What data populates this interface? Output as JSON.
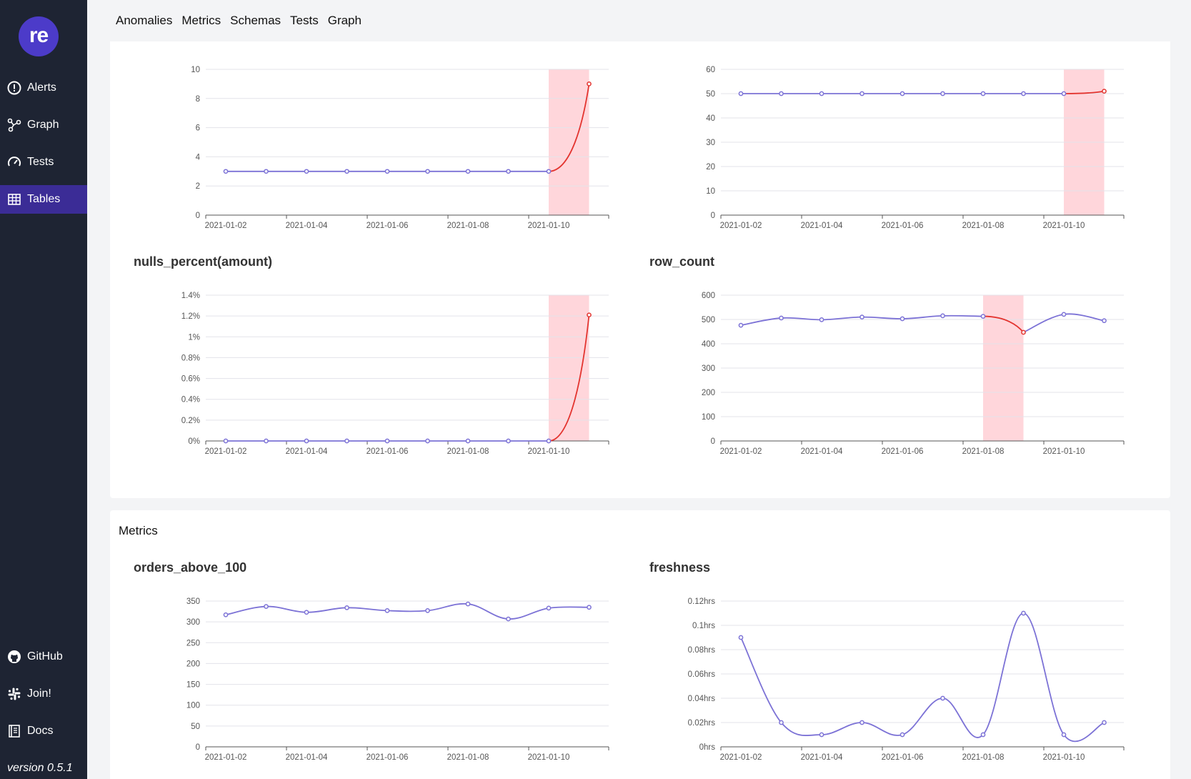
{
  "sidebar": {
    "logo": "re",
    "items": [
      {
        "label": "Alerts",
        "icon": "alert-circle-icon"
      },
      {
        "label": "Graph",
        "icon": "graph-nodes-icon"
      },
      {
        "label": "Tests",
        "icon": "gauge-icon"
      },
      {
        "label": "Tables",
        "icon": "table-icon",
        "active": true
      }
    ],
    "bottom_items": [
      {
        "label": "GitHub",
        "icon": "github-icon"
      },
      {
        "label": "Join!",
        "icon": "slack-icon"
      },
      {
        "label": "Docs",
        "icon": "book-icon"
      }
    ],
    "version": "version 0.5.1"
  },
  "topnav": [
    "Anomalies",
    "Metrics",
    "Schemas",
    "Tests",
    "Graph"
  ],
  "metrics_section": {
    "heading": "Metrics"
  },
  "colors": {
    "line": "#7c72d6",
    "anomaly": "#e3342f",
    "band": "#ffd6db",
    "sidebar": "#1e2433",
    "active": "#3b2c96"
  },
  "chart_data": [
    {
      "id": "c1",
      "type": "line",
      "title": "",
      "x": [
        "2021-01-02",
        "2021-01-03",
        "2021-01-04",
        "2021-01-05",
        "2021-01-06",
        "2021-01-07",
        "2021-01-08",
        "2021-01-09",
        "2021-01-10",
        "2021-01-11"
      ],
      "values": [
        3,
        3,
        3,
        3,
        3,
        3,
        3,
        3,
        3,
        9
      ],
      "yticks": [
        0,
        2,
        4,
        6,
        8,
        10
      ],
      "ytick_labels": [
        "0",
        "2",
        "4",
        "6",
        "8",
        "10"
      ],
      "ylim": [
        0,
        10
      ],
      "xtick_labels": [
        "2021-01-02",
        "2021-01-04",
        "2021-01-06",
        "2021-01-08",
        "2021-01-10"
      ],
      "anomaly_from": 8,
      "anomaly_to": 9
    },
    {
      "id": "c2",
      "type": "line",
      "title": "",
      "x": [
        "2021-01-02",
        "2021-01-03",
        "2021-01-04",
        "2021-01-05",
        "2021-01-06",
        "2021-01-07",
        "2021-01-08",
        "2021-01-09",
        "2021-01-10",
        "2021-01-11"
      ],
      "values": [
        50,
        50,
        50,
        50,
        50,
        50,
        50,
        50,
        50,
        51
      ],
      "yticks": [
        0,
        10,
        20,
        30,
        40,
        50,
        60
      ],
      "ytick_labels": [
        "0",
        "10",
        "20",
        "30",
        "40",
        "50",
        "60"
      ],
      "ylim": [
        0,
        60
      ],
      "xtick_labels": [
        "2021-01-02",
        "2021-01-04",
        "2021-01-06",
        "2021-01-08",
        "2021-01-10"
      ],
      "anomaly_from": 8,
      "anomaly_to": 9
    },
    {
      "id": "c3",
      "type": "line",
      "title": "nulls_percent(amount)",
      "x": [
        "2021-01-02",
        "2021-01-03",
        "2021-01-04",
        "2021-01-05",
        "2021-01-06",
        "2021-01-07",
        "2021-01-08",
        "2021-01-09",
        "2021-01-10",
        "2021-01-11"
      ],
      "values": [
        0,
        0,
        0,
        0,
        0,
        0,
        0,
        0,
        0,
        1.21
      ],
      "yticks": [
        0,
        0.2,
        0.4,
        0.6,
        0.8,
        1,
        1.2,
        1.4
      ],
      "ytick_labels": [
        "0%",
        "0.2%",
        "0.4%",
        "0.6%",
        "0.8%",
        "1%",
        "1.2%",
        "1.4%"
      ],
      "ylim": [
        0,
        1.4
      ],
      "xtick_labels": [
        "2021-01-02",
        "2021-01-04",
        "2021-01-06",
        "2021-01-08",
        "2021-01-10"
      ],
      "anomaly_from": 8,
      "anomaly_to": 9
    },
    {
      "id": "c4",
      "type": "line",
      "title": "row_count",
      "x": [
        "2021-01-02",
        "2021-01-03",
        "2021-01-04",
        "2021-01-05",
        "2021-01-06",
        "2021-01-07",
        "2021-01-08",
        "2021-01-09",
        "2021-01-10",
        "2021-01-11"
      ],
      "values": [
        476,
        506,
        499,
        510,
        503,
        515,
        513,
        447,
        521,
        495
      ],
      "yticks": [
        0,
        100,
        200,
        300,
        400,
        500,
        600
      ],
      "ytick_labels": [
        "0",
        "100",
        "200",
        "300",
        "400",
        "500",
        "600"
      ],
      "ylim": [
        0,
        600
      ],
      "xtick_labels": [
        "2021-01-02",
        "2021-01-04",
        "2021-01-06",
        "2021-01-08",
        "2021-01-10"
      ],
      "anomaly_from": 6,
      "anomaly_to": 7
    },
    {
      "id": "c5",
      "type": "line",
      "title": "orders_above_100",
      "x": [
        "2021-01-02",
        "2021-01-03",
        "2021-01-04",
        "2021-01-05",
        "2021-01-06",
        "2021-01-07",
        "2021-01-08",
        "2021-01-09",
        "2021-01-10",
        "2021-01-11"
      ],
      "values": [
        317,
        337,
        323,
        334,
        327,
        327,
        343,
        307,
        333,
        335
      ],
      "yticks": [
        0,
        50,
        100,
        150,
        200,
        250,
        300,
        350
      ],
      "ytick_labels": [
        "0",
        "50",
        "100",
        "150",
        "200",
        "250",
        "300",
        "350"
      ],
      "ylim": [
        0,
        350
      ],
      "xtick_labels": [
        "2021-01-02",
        "2021-01-04",
        "2021-01-06",
        "2021-01-08",
        "2021-01-10"
      ]
    },
    {
      "id": "c6",
      "type": "line",
      "title": "freshness",
      "x": [
        "2021-01-02",
        "2021-01-03",
        "2021-01-04",
        "2021-01-05",
        "2021-01-06",
        "2021-01-07",
        "2021-01-08",
        "2021-01-09",
        "2021-01-10",
        "2021-01-11"
      ],
      "values": [
        0.09,
        0.02,
        0.01,
        0.02,
        0.01,
        0.04,
        0.01,
        0.11,
        0.01,
        0.02
      ],
      "yticks": [
        0,
        0.02,
        0.04,
        0.06,
        0.08,
        0.1,
        0.12
      ],
      "ytick_labels": [
        "0hrs",
        "0.02hrs",
        "0.04hrs",
        "0.06hrs",
        "0.08hrs",
        "0.1hrs",
        "0.12hrs"
      ],
      "ylim": [
        0,
        0.12
      ],
      "xtick_labels": [
        "2021-01-02",
        "2021-01-04",
        "2021-01-06",
        "2021-01-08",
        "2021-01-10"
      ]
    }
  ]
}
